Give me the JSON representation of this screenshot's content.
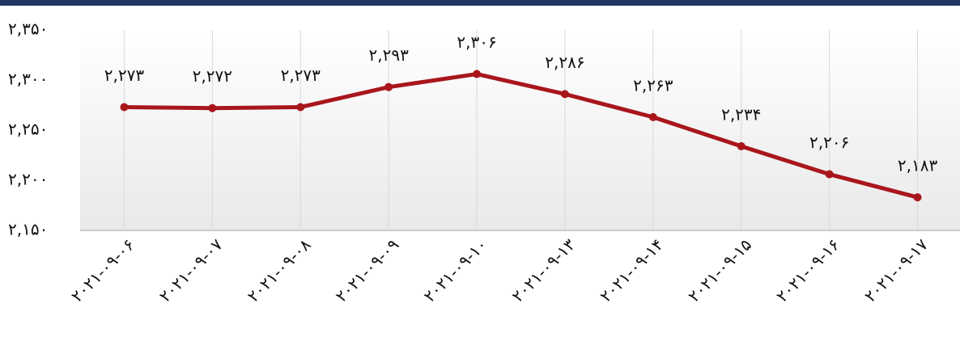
{
  "chart_data": {
    "type": "line",
    "categories": [
      "۲۰۲۱-۰۹-۰۶",
      "۲۰۲۱-۰۹-۰۷",
      "۲۰۲۱-۰۹-۰۸",
      "۲۰۲۱-۰۹-۰۹",
      "۲۰۲۱-۰۹-۱۰",
      "۲۰۲۱-۰۹-۱۳",
      "۲۰۲۱-۰۹-۱۴",
      "۲۰۲۱-۰۹-۱۵",
      "۲۰۲۱-۰۹-۱۶",
      "۲۰۲۱-۰۹-۱۷"
    ],
    "series": [
      {
        "color": "#a8161c",
        "values": [
          2273,
          2272,
          2273,
          2293,
          2306,
          2286,
          2263,
          2234,
          2206,
          2183
        ],
        "value_labels": [
          "۲,۲۷۳",
          "۲,۲۷۲",
          "۲,۲۷۳",
          "۲,۲۹۳",
          "۲,۳۰۶",
          "۲,۲۸۶",
          "۲,۲۶۳",
          "۲,۲۳۴",
          "۲,۲۰۶",
          "۲,۱۸۳"
        ]
      }
    ],
    "ylim": [
      2150,
      2350
    ],
    "yticks": [
      {
        "value": 2150,
        "label": "۲,۱۵۰"
      },
      {
        "value": 2200,
        "label": "۲,۲۰۰"
      },
      {
        "value": 2250,
        "label": "۲,۲۵۰"
      },
      {
        "value": 2300,
        "label": "۲,۳۰۰"
      },
      {
        "value": 2350,
        "label": "۲,۳۵۰"
      }
    ],
    "grid": false
  }
}
